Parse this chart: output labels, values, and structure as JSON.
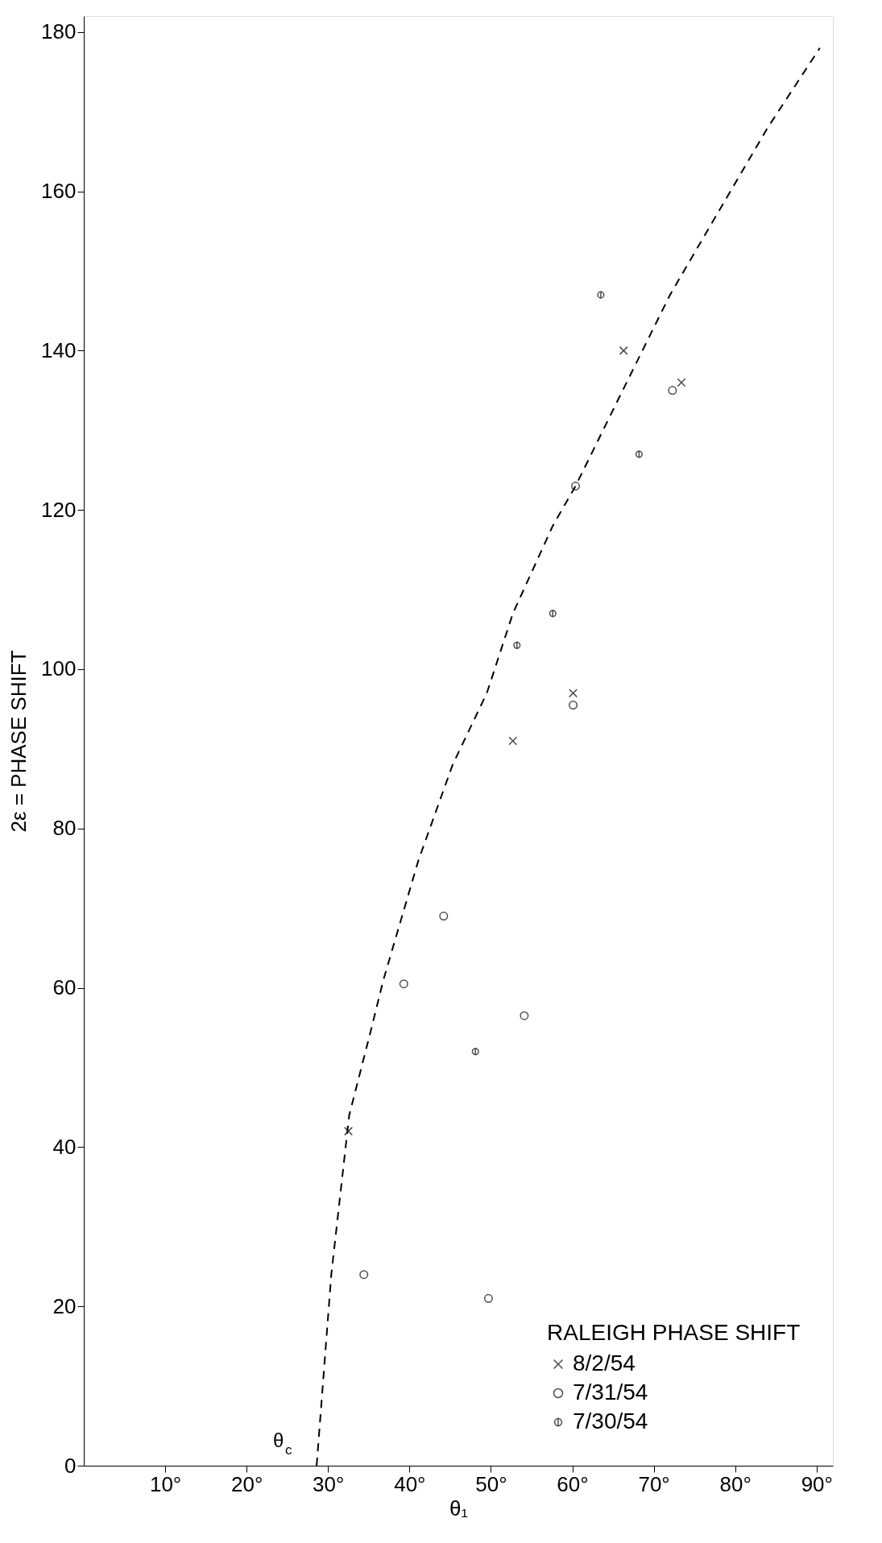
{
  "chart_data": {
    "type": "scatter",
    "ylabel": "2ε = PHASE SHIFT",
    "xlabel": "θ₁",
    "legend_title": "RALEIGH PHASE SHIFT",
    "legend": "bottom right",
    "grid": false,
    "xlim": [
      0,
      92
    ],
    "ylim": [
      0,
      182
    ],
    "xticks": [
      {
        "value": 10,
        "label": "10°"
      },
      {
        "value": 20,
        "label": "20°"
      },
      {
        "value": 30,
        "label": "30°"
      },
      {
        "value": 40,
        "label": "40°"
      },
      {
        "value": 50,
        "label": "50°"
      },
      {
        "value": 60,
        "label": "60°"
      },
      {
        "value": 70,
        "label": "70°"
      },
      {
        "value": 80,
        "label": "80°"
      },
      {
        "value": 90,
        "label": "90°"
      }
    ],
    "yticks": [
      0,
      20,
      40,
      60,
      80,
      100,
      120,
      140,
      160,
      180
    ],
    "annotations": [
      "θ$_{c}$"
    ],
    "series": [
      {
        "type": "line",
        "line_style": "dashed",
        "color": "#000000",
        "x": [
          28.6,
          30.4,
          32.6,
          35.1,
          36.8,
          41.1,
          45.3,
          49.5,
          52.7,
          57.6,
          60.4,
          65.7,
          72,
          77.7,
          84,
          90.4
        ],
        "values": [
          0,
          24,
          44,
          54,
          61,
          76,
          88,
          97,
          107,
          118,
          123,
          134,
          147,
          157,
          168,
          178
        ]
      },
      {
        "name": "8/2/54",
        "color": "#000000",
        "x": [
          66.3,
          73.4,
          60.1,
          52.7,
          32.5
        ],
        "values": [
          140,
          136,
          97,
          91,
          42
        ]
      },
      {
        "name": "7/31/54",
        "color": "#000000",
        "x": [
          72.3,
          60.4,
          60.1,
          44.2,
          39.3,
          54.1,
          34.4,
          49.7
        ],
        "values": [
          135,
          123,
          95.5,
          69,
          60.5,
          56.5,
          24,
          21
        ]
      },
      {
        "name": "7/30/54",
        "color": "#000000",
        "x": [
          63.5,
          68.2,
          57.6,
          53.2,
          48.1
        ],
        "values": [
          147,
          127,
          107,
          103,
          52
        ]
      }
    ]
  }
}
